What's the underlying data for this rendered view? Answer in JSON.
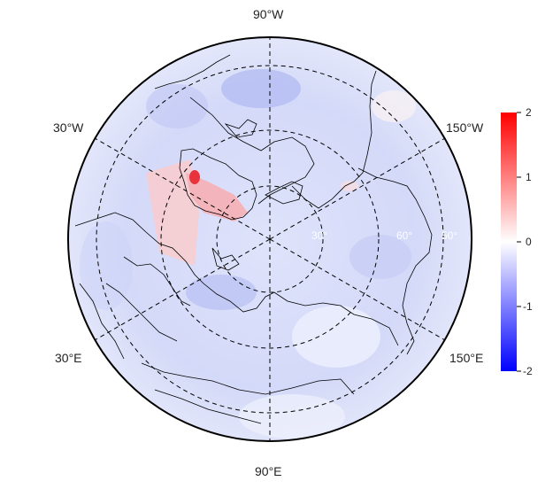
{
  "map": {
    "projection": "north-polar-stereographic",
    "longitude_labels": {
      "top": "90°W",
      "upper_left": "30°W",
      "upper_right": "150°W",
      "lower_left": "30°E",
      "lower_right": "150°E",
      "bottom": "90°E"
    },
    "latitude_labels": [
      "30°",
      "60°",
      "50°"
    ],
    "graticule_style": "dashed",
    "field_description": "anomaly field, mostly weak negative (light blue) with positive patches over Greenland and the Norwegian/Barents Sea"
  },
  "colorbar": {
    "ticks": [
      "2",
      "1",
      "0",
      "-1",
      "-2"
    ],
    "range": [
      -2,
      2
    ],
    "colors": {
      "max": "#ff0000",
      "mid": "#ffffff",
      "min": "#0000ff"
    }
  }
}
